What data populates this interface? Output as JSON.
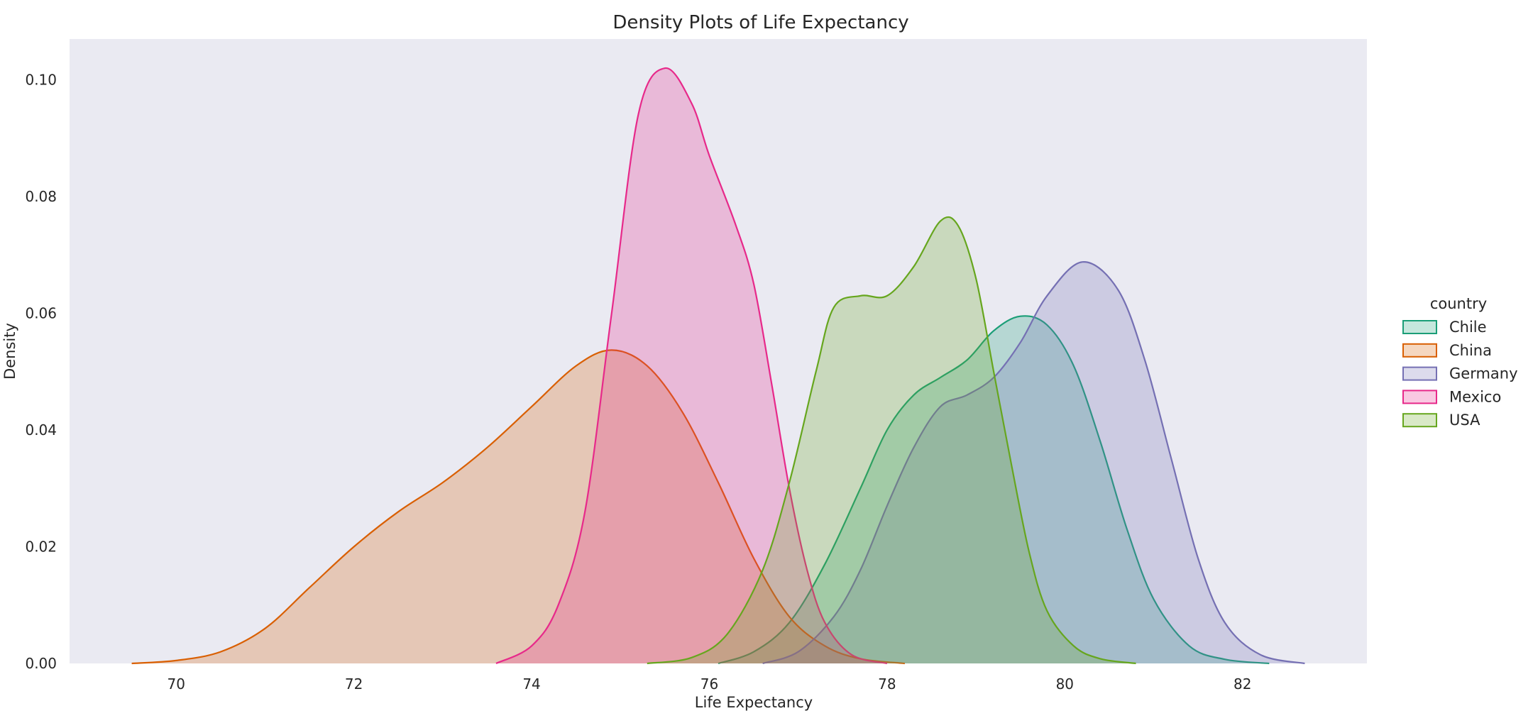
{
  "chart_data": {
    "type": "area",
    "title": "Density Plots of Life Expectancy",
    "xlabel": "Life Expectancy",
    "ylabel": "Density",
    "xlim": [
      68.8,
      83.4
    ],
    "ylim": [
      0,
      0.107
    ],
    "xticks": [
      70,
      72,
      74,
      76,
      78,
      80,
      82
    ],
    "xtick_labels": [
      "70",
      "72",
      "74",
      "76",
      "78",
      "80",
      "82"
    ],
    "yticks": [
      0,
      0.02,
      0.04,
      0.06,
      0.08,
      0.1
    ],
    "ytick_labels": [
      "0.00",
      "0.02",
      "0.04",
      "0.06",
      "0.08",
      "0.10"
    ],
    "grid": false,
    "background": "#eaeaf2",
    "legend": {
      "title": "country",
      "placement": "right"
    },
    "series": [
      {
        "name": "Chile",
        "color": "#1b9e77",
        "x": [
          76.1,
          76.5,
          76.9,
          77.3,
          77.7,
          78.0,
          78.3,
          78.6,
          78.9,
          79.2,
          79.5,
          79.8,
          80.1,
          80.4,
          80.7,
          81.0,
          81.4,
          81.8,
          82.3
        ],
        "y": [
          0,
          0.002,
          0.007,
          0.017,
          0.03,
          0.04,
          0.046,
          0.049,
          0.052,
          0.057,
          0.0595,
          0.058,
          0.051,
          0.038,
          0.023,
          0.011,
          0.003,
          0.0007,
          0
        ]
      },
      {
        "name": "China",
        "color": "#d95f02",
        "x": [
          69.5,
          70.0,
          70.5,
          71.0,
          71.5,
          72.0,
          72.5,
          73.0,
          73.5,
          74.0,
          74.5,
          74.9,
          75.3,
          75.7,
          76.1,
          76.5,
          76.9,
          77.3,
          77.7,
          78.2
        ],
        "y": [
          0,
          0.0005,
          0.002,
          0.006,
          0.013,
          0.02,
          0.026,
          0.031,
          0.037,
          0.044,
          0.051,
          0.0537,
          0.051,
          0.043,
          0.031,
          0.018,
          0.008,
          0.003,
          0.0008,
          0
        ]
      },
      {
        "name": "Germany",
        "color": "#7570b3",
        "x": [
          76.6,
          77.0,
          77.4,
          77.7,
          78.0,
          78.3,
          78.6,
          78.9,
          79.2,
          79.5,
          79.8,
          80.2,
          80.6,
          80.9,
          81.2,
          81.5,
          81.8,
          82.2,
          82.7
        ],
        "y": [
          0,
          0.002,
          0.008,
          0.016,
          0.027,
          0.037,
          0.044,
          0.046,
          0.049,
          0.055,
          0.063,
          0.0688,
          0.064,
          0.052,
          0.035,
          0.018,
          0.007,
          0.0015,
          0
        ]
      },
      {
        "name": "Mexico",
        "color": "#e7298a",
        "x": [
          73.6,
          74.0,
          74.3,
          74.6,
          74.9,
          75.2,
          75.5,
          75.8,
          76.0,
          76.3,
          76.5,
          76.7,
          76.9,
          77.1,
          77.3,
          77.6,
          78.0
        ],
        "y": [
          0,
          0.003,
          0.01,
          0.026,
          0.06,
          0.094,
          0.102,
          0.096,
          0.087,
          0.075,
          0.065,
          0.048,
          0.03,
          0.016,
          0.007,
          0.0015,
          0
        ]
      },
      {
        "name": "USA",
        "color": "#66a61e",
        "x": [
          75.3,
          75.8,
          76.2,
          76.6,
          76.9,
          77.2,
          77.4,
          77.7,
          78.0,
          78.3,
          78.6,
          78.8,
          79.0,
          79.2,
          79.4,
          79.6,
          79.8,
          80.1,
          80.4,
          80.8
        ],
        "y": [
          0,
          0.001,
          0.005,
          0.016,
          0.031,
          0.05,
          0.061,
          0.063,
          0.063,
          0.068,
          0.0758,
          0.075,
          0.066,
          0.05,
          0.034,
          0.019,
          0.009,
          0.003,
          0.0008,
          0
        ]
      }
    ]
  }
}
